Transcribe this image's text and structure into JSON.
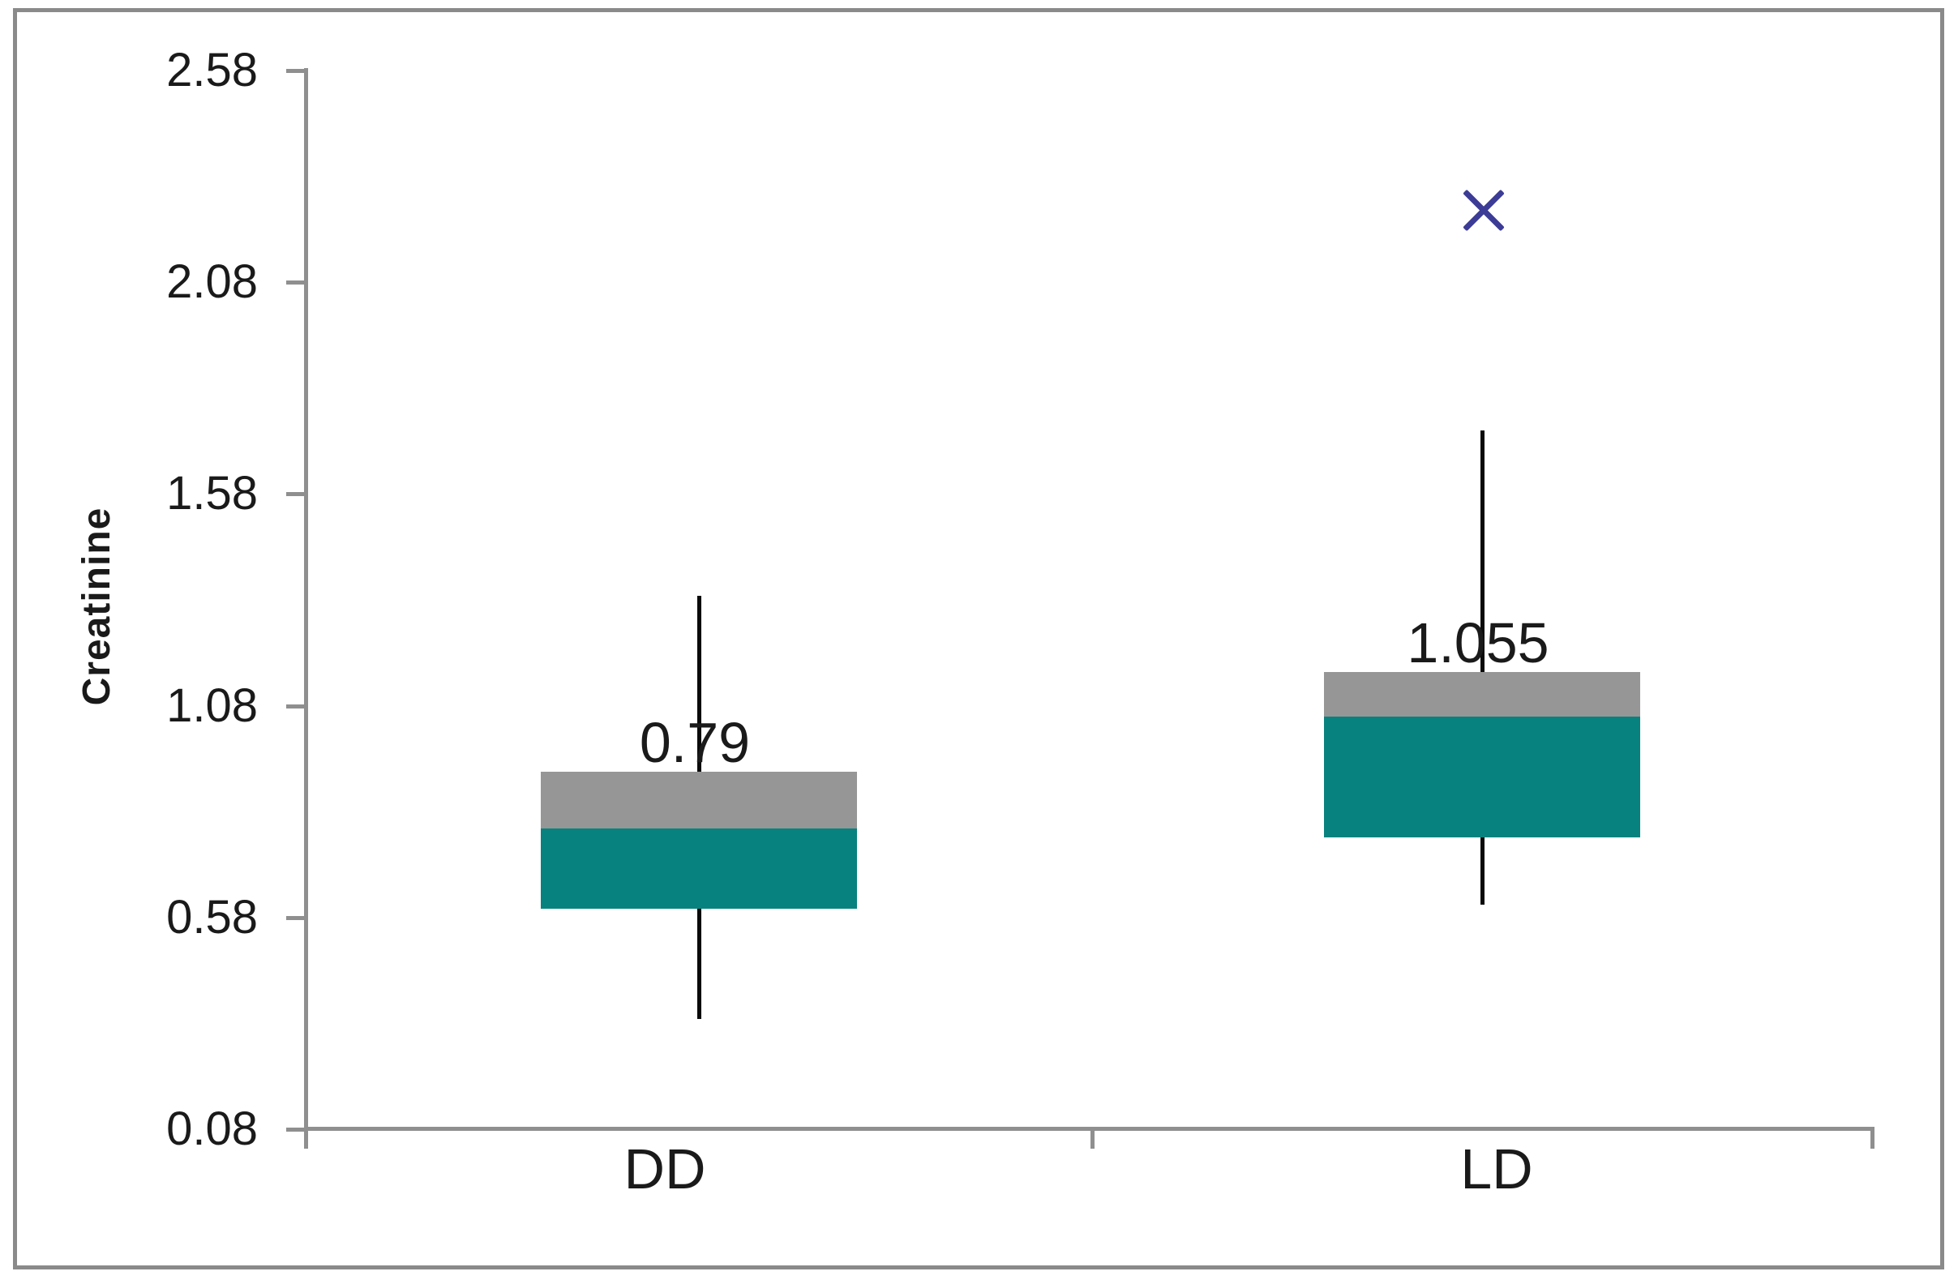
{
  "chart_data": {
    "type": "boxplot",
    "title": "",
    "xlabel": "",
    "ylabel": "Creatinine",
    "categories": [
      "DD",
      "LD"
    ],
    "y_axis": {
      "min": 0.08,
      "max": 2.58,
      "tick_step": 0.5,
      "ticks": [
        2.58,
        2.08,
        1.58,
        1.08,
        0.58,
        0.08
      ],
      "tick_labels": [
        "2.58",
        "2.08",
        "1.58",
        "1.08",
        "0.58",
        "0.08"
      ]
    },
    "series": [
      {
        "category": "DD",
        "whisker_low": 0.34,
        "q1": 0.6,
        "median": 0.79,
        "q3": 0.925,
        "whisker_high": 1.34,
        "median_label": "0.79",
        "outliers": []
      },
      {
        "category": "LD",
        "whisker_low": 0.61,
        "q1": 0.77,
        "median": 1.055,
        "q3": 1.16,
        "whisker_high": 1.73,
        "median_label": "1.055",
        "outliers": [
          2.25
        ]
      }
    ],
    "legend": "none",
    "grid": false,
    "colors": {
      "upper_box": "#969696",
      "lower_box": "#08827e",
      "whisker": "#0a0a0a",
      "axis": "#8f8f8f",
      "outlier": "#3c3c96",
      "label_text": "#1a1a1a",
      "frame_border": "#8a8a8a"
    }
  }
}
